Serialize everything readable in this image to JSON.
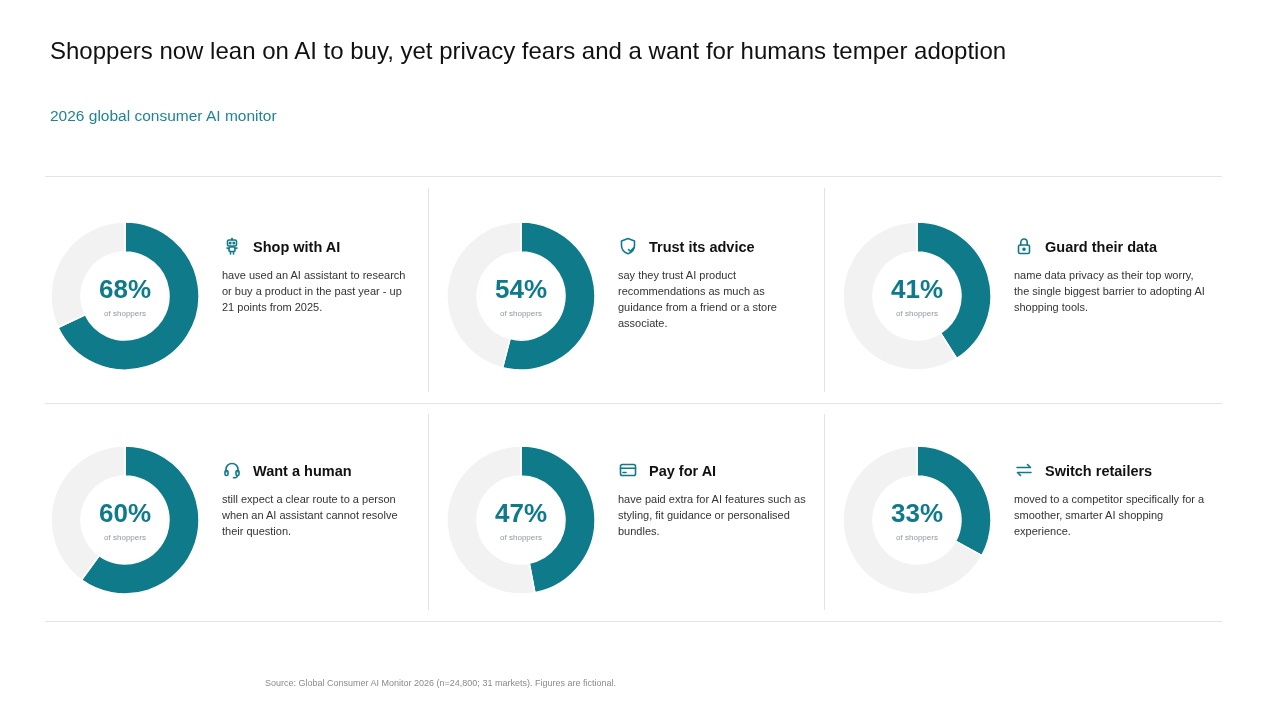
{
  "chart_data": [
    {
      "type": "other",
      "title": "Shoppers now lean on AI to buy, yet privacy fears and a want for humans temper adoption",
      "subtitle": "2026 global consumer AI monitor"
    },
    {
      "type": "donut",
      "title": "Shop with AI",
      "subtitle": "have used an AI assistant to research or buy a product in the past year - up 21 points from 2025.",
      "categories": [
        null,
        null
      ],
      "values": [
        68,
        32
      ],
      "colors": [
        "#0e7a8a",
        "#f2f2f2"
      ],
      "value_labels": [
        "68%",
        null
      ],
      "annotations": [
        "of shoppers"
      ]
    },
    {
      "type": "donut",
      "title": "Trust its advice",
      "subtitle": "say they trust AI product recommendations as much as guidance from a friend or a store associate.",
      "categories": [
        null,
        null
      ],
      "values": [
        54,
        46
      ],
      "colors": [
        "#0e7a8a",
        "#f2f2f2"
      ],
      "value_labels": [
        "54%",
        null
      ],
      "annotations": [
        "of shoppers"
      ]
    },
    {
      "type": "donut",
      "title": "Guard their data",
      "subtitle": "name data privacy as their top worry, the single biggest barrier to adopting AI shopping tools.",
      "categories": [
        null,
        null
      ],
      "values": [
        41,
        59
      ],
      "colors": [
        "#0e7a8a",
        "#f2f2f2"
      ],
      "value_labels": [
        "41%",
        null
      ],
      "annotations": [
        "of shoppers"
      ]
    },
    {
      "type": "donut",
      "title": "Want a human",
      "subtitle": "still expect a clear route to a person when an AI assistant cannot resolve their question.",
      "categories": [
        null,
        null
      ],
      "values": [
        60,
        40
      ],
      "colors": [
        "#0e7a8a",
        "#f2f2f2"
      ],
      "value_labels": [
        "60%",
        null
      ],
      "annotations": [
        "of shoppers"
      ]
    },
    {
      "type": "donut",
      "title": "Pay for AI",
      "subtitle": "have paid extra for AI features such as styling, fit guidance or personalised bundles.",
      "categories": [
        null,
        null
      ],
      "values": [
        47,
        53
      ],
      "colors": [
        "#0e7a8a",
        "#f2f2f2"
      ],
      "value_labels": [
        "47%",
        null
      ],
      "annotations": [
        "of shoppers"
      ]
    },
    {
      "type": "donut",
      "title": "Switch retailers",
      "subtitle": "moved to a competitor specifically for a smoother, smarter AI shopping experience.",
      "categories": [
        null,
        null
      ],
      "values": [
        33,
        67
      ],
      "colors": [
        "#0e7a8a",
        "#f2f2f2"
      ],
      "value_labels": [
        "33%",
        null
      ],
      "annotations": [
        "of shoppers"
      ]
    },
    {
      "type": "other",
      "annotations": [
        "Source: Global Consumer AI Monitor 2026 (n=24,800; 31 markets). Figures are fictional."
      ]
    }
  ]
}
